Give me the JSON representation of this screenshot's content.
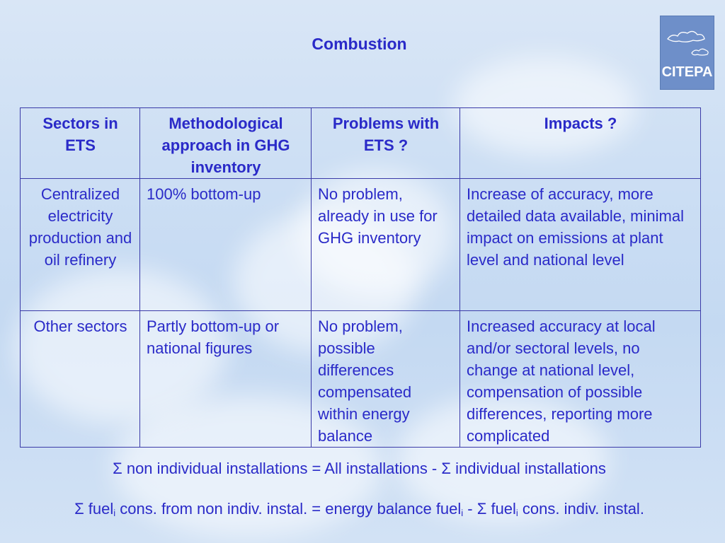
{
  "title": "Combustion",
  "logo": {
    "text": "CITEPA"
  },
  "table": {
    "headers": [
      "Sectors in ETS",
      "Methodological approach in GHG inventory",
      "Problems with ETS ?",
      "Impacts ?"
    ],
    "rows": [
      {
        "sector": "Centralized electricity production and oil refinery",
        "approach": "100% bottom-up",
        "problems": "No problem, already in use for GHG inventory",
        "impacts": "Increase of accuracy, more detailed data available, minimal impact on emissions at plant level and national level"
      },
      {
        "sector": "Other sectors",
        "approach": "Partly bottom-up or national figures",
        "problems": "No problem, possible differences compensated within energy balance",
        "impacts": "Increased accuracy at local and/or sectoral levels, no change at national level, compensation of possible differences, reporting more complicated"
      }
    ]
  },
  "formula1": "Σ non individual installations = All installations - Σ individual installations",
  "formula2": {
    "p1": "Σ fuel",
    "sub": "i",
    "p2": " cons. from non indiv. instal. = energy balance fuel",
    "p3": " - Σ fuel",
    "p4": " cons. indiv. instal."
  }
}
